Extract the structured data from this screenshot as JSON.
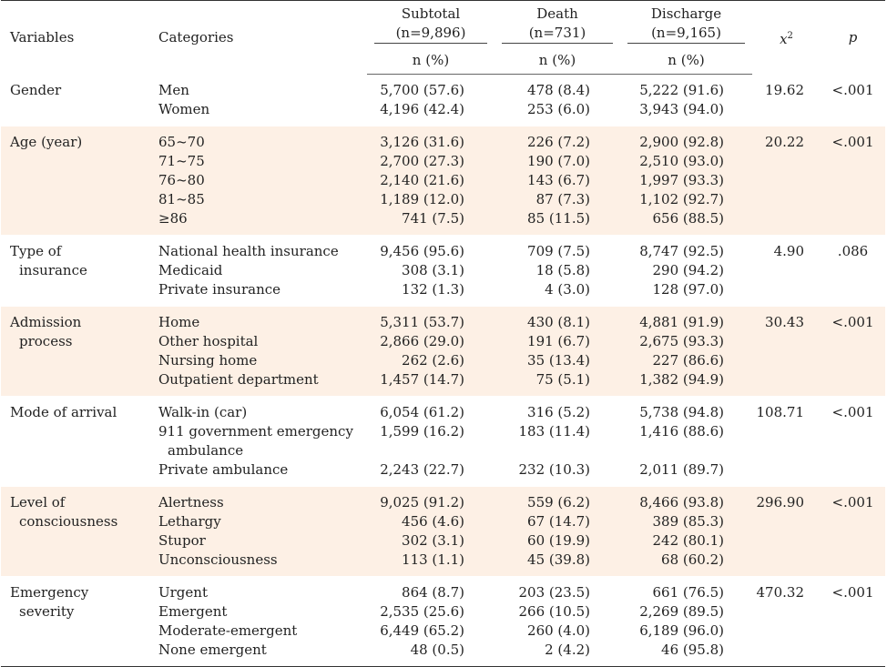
{
  "header": {
    "variables": "Variables",
    "categories": "Categories",
    "subtotal": [
      "Subtotal",
      "(n=9,896)"
    ],
    "death": [
      "Death",
      "(n=731)"
    ],
    "discharge": [
      "Discharge",
      "(n=9,165)"
    ],
    "chi2": "x",
    "chi2_sup": "2",
    "p": "p",
    "np": "n (%)"
  },
  "rows": [
    {
      "variable": [
        "Gender"
      ],
      "categories": [
        "Men",
        "Women"
      ],
      "subtotal": [
        "5,700 (57.6)",
        "4,196 (42.4)"
      ],
      "death": [
        "478 (8.4)",
        "253 (6.0)"
      ],
      "discharge": [
        "5,222 (91.6)",
        "3,943 (94.0)"
      ],
      "chi2": "19.62",
      "p": "<.001",
      "shaded": false
    },
    {
      "variable": [
        "Age (year)"
      ],
      "categories": [
        "65~70",
        "71~75",
        "76~80",
        "81~85",
        "≥86"
      ],
      "subtotal": [
        "3,126 (31.6)",
        "2,700 (27.3)",
        "2,140 (21.6)",
        "1,189 (12.0)",
        "741 (7.5)"
      ],
      "death": [
        "226 (7.2)",
        "190 (7.0)",
        "143 (6.7)",
        "87 (7.3)",
        "85 (11.5)"
      ],
      "discharge": [
        "2,900 (92.8)",
        "2,510 (93.0)",
        "1,997 (93.3)",
        "1,102 (92.7)",
        "656 (88.5)"
      ],
      "chi2": "20.22",
      "p": "<.001",
      "shaded": true
    },
    {
      "variable": [
        "Type of",
        "insurance"
      ],
      "categories": [
        "National health insurance",
        "Medicaid",
        "Private insurance"
      ],
      "subtotal": [
        "9,456 (95.6)",
        "308 (3.1)",
        "132 (1.3)"
      ],
      "death": [
        "709 (7.5)",
        "18 (5.8)",
        "4 (3.0)"
      ],
      "discharge": [
        "8,747 (92.5)",
        "290 (94.2)",
        "128 (97.0)"
      ],
      "chi2": "4.90",
      "p": ".086",
      "shaded": false
    },
    {
      "variable": [
        "Admission",
        "process"
      ],
      "categories": [
        "Home",
        "Other hospital",
        "Nursing home",
        "Outpatient department"
      ],
      "subtotal": [
        "5,311 (53.7)",
        "2,866 (29.0)",
        "262 (2.6)",
        "1,457 (14.7)"
      ],
      "death": [
        "430 (8.1)",
        "191 (6.7)",
        "35 (13.4)",
        "75 (5.1)"
      ],
      "discharge": [
        "4,881 (91.9)",
        "2,675 (93.3)",
        "227 (86.6)",
        "1,382 (94.9)"
      ],
      "chi2": "30.43",
      "p": "<.001",
      "shaded": true
    },
    {
      "variable": [
        "Mode of arrival"
      ],
      "categories": [
        "Walk-in (car)",
        "911 government emergency",
        "ambulance",
        "Private ambulance"
      ],
      "subtotal": [
        "6,054 (61.2)",
        "1,599 (16.2)",
        "",
        "2,243 (22.7)"
      ],
      "death": [
        "316 (5.2)",
        "183 (11.4)",
        "",
        "232 (10.3)"
      ],
      "discharge": [
        "5,738 (94.8)",
        "1,416 (88.6)",
        "",
        "2,011 (89.7)"
      ],
      "chi2": "108.71",
      "p": "<.001",
      "shaded": false
    },
    {
      "variable": [
        "Level of",
        "consciousness"
      ],
      "categories": [
        "Alertness",
        "Lethargy",
        "Stupor",
        "Unconsciousness"
      ],
      "subtotal": [
        "9,025 (91.2)",
        "456 (4.6)",
        "302 (3.1)",
        "113 (1.1)"
      ],
      "death": [
        "559 (6.2)",
        "67 (14.7)",
        "60 (19.9)",
        "45 (39.8)"
      ],
      "discharge": [
        "8,466 (93.8)",
        "389 (85.3)",
        "242 (80.1)",
        "68 (60.2)"
      ],
      "chi2": "296.90",
      "p": "<.001",
      "shaded": true
    },
    {
      "variable": [
        "Emergency",
        "severity"
      ],
      "categories": [
        "Urgent",
        "Emergent",
        "Moderate-emergent",
        "None emergent"
      ],
      "subtotal": [
        "864 (8.7)",
        "2,535 (25.6)",
        "6,449 (65.2)",
        "48 (0.5)"
      ],
      "death": [
        "203 (23.5)",
        "266 (10.5)",
        "260 (4.0)",
        "2 (4.2)"
      ],
      "discharge": [
        "661 (76.5)",
        "2,269 (89.5)",
        "6,189 (96.0)",
        "46 (95.8)"
      ],
      "chi2": "470.32",
      "p": "<.001",
      "shaded": false
    }
  ]
}
